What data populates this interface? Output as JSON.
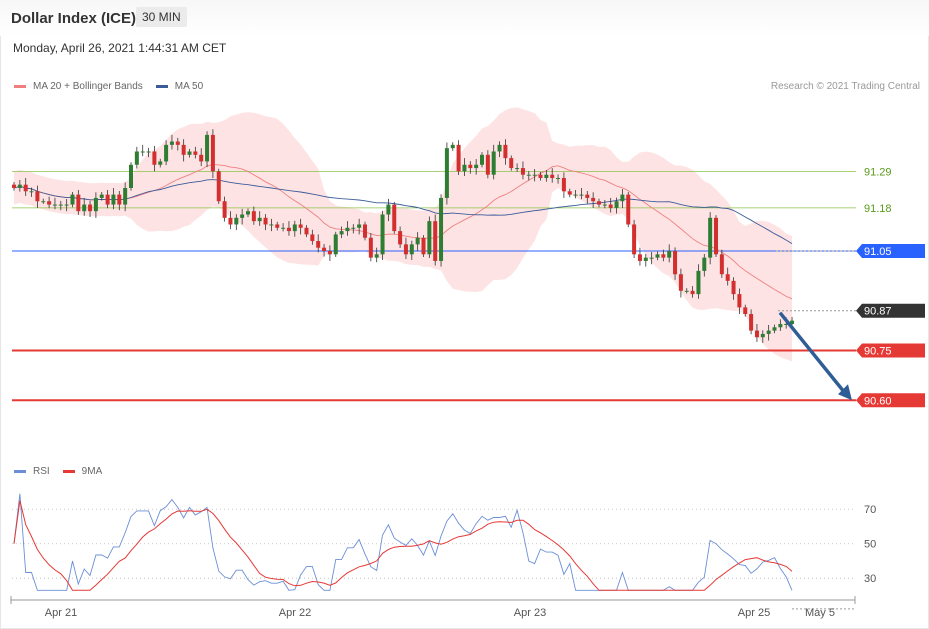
{
  "header": {
    "title": "Dollar Index (ICE)",
    "timeframe": "30 MIN",
    "date": "Monday, April 26, 2021 1:44:31 AM CET"
  },
  "legend": {
    "ma20_label": "MA 20 + Bollinger Bands",
    "ma50_label": "MA 50",
    "credit": "Research © 2021 Trading Central",
    "rsi_label": "RSI",
    "ma9_label": "9MA"
  },
  "colors": {
    "bull_candle": "#2e7d32",
    "bear_candle": "#d32f2f",
    "bollinger_fill": "#fde3e3",
    "ma20": "#f08080",
    "ma50": "#3b5b9a",
    "support": "#e53935",
    "pivot": "#2962ff",
    "resistance": "#8bc34a",
    "last_price": "#333333",
    "arrow": "#2f5d96",
    "rsi": "#6b8fd6",
    "ma9": "#e53935"
  },
  "chart_data": [
    {
      "type": "candlestick",
      "ylim": [
        90.435,
        91.46
      ],
      "x_labels": [
        "Apr 21",
        "Apr 22",
        "Apr 23",
        "Apr 25",
        "May 5"
      ],
      "levels": [
        {
          "value": 91.29,
          "label": "91.29",
          "kind": "resistance"
        },
        {
          "value": 91.18,
          "label": "91.18",
          "kind": "resistance"
        },
        {
          "value": 91.05,
          "label": "91.05",
          "kind": "pivot"
        },
        {
          "value": 90.87,
          "label": "90.87",
          "kind": "last"
        },
        {
          "value": 90.75,
          "label": "90.75",
          "kind": "support"
        },
        {
          "value": 90.6,
          "label": "90.60",
          "kind": "support"
        }
      ],
      "closes": [
        91.24,
        91.25,
        91.23,
        91.23,
        91.2,
        91.2,
        91.19,
        91.19,
        91.19,
        91.19,
        91.22,
        91.17,
        91.19,
        91.17,
        91.21,
        91.22,
        91.19,
        91.22,
        91.19,
        91.24,
        91.31,
        91.35,
        91.35,
        91.35,
        91.31,
        91.32,
        91.37,
        91.38,
        91.37,
        91.34,
        91.35,
        91.34,
        91.32,
        91.4,
        91.29,
        91.2,
        91.15,
        91.13,
        91.15,
        91.16,
        91.17,
        91.14,
        91.15,
        91.13,
        91.13,
        91.12,
        91.12,
        91.11,
        91.13,
        91.12,
        91.1,
        91.08,
        91.06,
        91.05,
        91.04,
        91.1,
        91.11,
        91.12,
        91.12,
        91.13,
        91.09,
        91.03,
        91.04,
        91.16,
        91.19,
        91.11,
        91.07,
        91.04,
        91.07,
        91.09,
        91.04,
        91.14,
        91.02,
        91.21,
        91.36,
        91.37,
        91.29,
        91.31,
        91.3,
        91.31,
        91.34,
        91.28,
        91.35,
        91.37,
        91.33,
        91.3,
        91.3,
        91.28,
        91.28,
        91.28,
        91.27,
        91.28,
        91.27,
        91.27,
        91.23,
        91.22,
        91.22,
        91.22,
        91.21,
        91.2,
        91.19,
        91.19,
        91.18,
        91.2,
        91.22,
        91.13,
        91.04,
        91.02,
        91.03,
        91.03,
        91.04,
        91.03,
        91.05,
        90.98,
        90.93,
        90.93,
        90.92,
        90.99,
        91.03,
        91.15,
        91.04,
        90.98,
        90.96,
        90.92,
        90.88,
        90.86,
        90.81,
        90.79,
        90.8,
        90.81,
        90.82,
        90.83,
        90.83,
        90.84
      ]
    },
    {
      "type": "line",
      "name": "RSI",
      "ylim": [
        22,
        80
      ],
      "ticks": [
        70,
        50,
        30
      ],
      "x_labels": [
        "Apr 21",
        "Apr 22",
        "Apr 23",
        "Apr 25",
        "May 5"
      ]
    }
  ]
}
